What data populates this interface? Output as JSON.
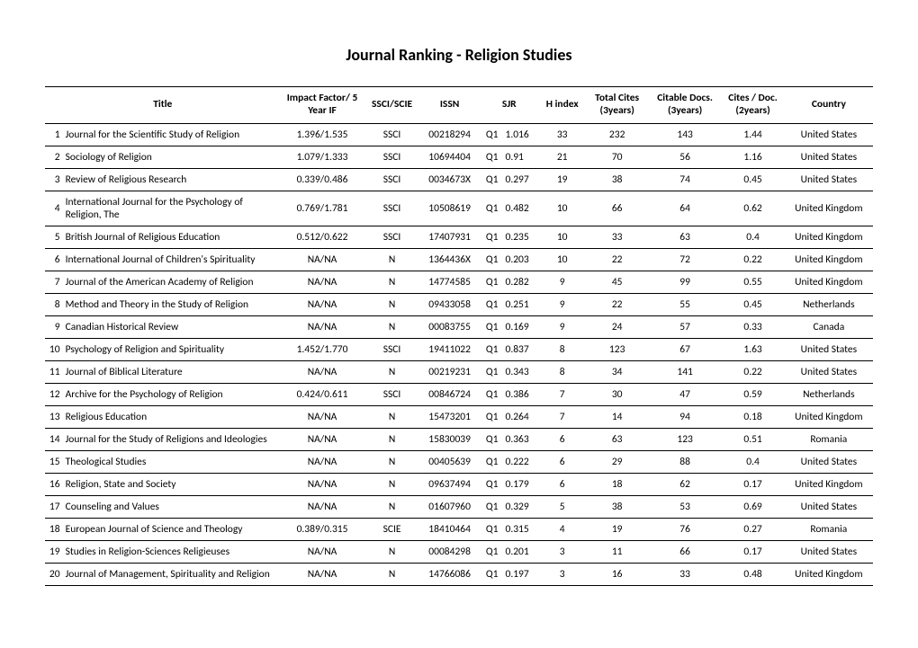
{
  "title": "Journal Ranking - Religion Studies",
  "columns": {
    "title": "Title",
    "impactFactor": "Impact Factor/ 5 Year IF",
    "ssci": "SSCI/SCIE",
    "issn": "ISSN",
    "sjr": "SJR",
    "h": "H index",
    "totalCites": "Total Cites (3years)",
    "citableDocs": "Citable Docs. (3years)",
    "citesDoc": "Cites / Doc. (2years)",
    "country": "Country"
  },
  "rows": [
    {
      "rank": "1",
      "title": "Journal for the Scientific Study of Religion",
      "if": "1.396/1.535",
      "ssci": "SSCI",
      "issn": "00218294",
      "q": "Q1",
      "sjr": "1.016",
      "h": "33",
      "cites": "232",
      "docs": "143",
      "cpd": "1.44",
      "country": "United States"
    },
    {
      "rank": "2",
      "title": "Sociology of Religion",
      "if": "1.079/1.333",
      "ssci": "SSCI",
      "issn": "10694404",
      "q": "Q1",
      "sjr": "0.91",
      "h": "21",
      "cites": "70",
      "docs": "56",
      "cpd": "1.16",
      "country": "United States"
    },
    {
      "rank": "3",
      "title": "Review of Religious Research",
      "if": "0.339/0.486",
      "ssci": "SSCI",
      "issn": "0034673X",
      "q": "Q1",
      "sjr": "0.297",
      "h": "19",
      "cites": "38",
      "docs": "74",
      "cpd": "0.45",
      "country": "United States"
    },
    {
      "rank": "4",
      "title": "International Journal for the Psychology of Religion, The",
      "if": "0.769/1.781",
      "ssci": "SSCI",
      "issn": "10508619",
      "q": "Q1",
      "sjr": "0.482",
      "h": "10",
      "cites": "66",
      "docs": "64",
      "cpd": "0.62",
      "country": "United Kingdom"
    },
    {
      "rank": "5",
      "title": "British Journal of Religious Education",
      "if": "0.512/0.622",
      "ssci": "SSCI",
      "issn": "17407931",
      "q": "Q1",
      "sjr": "0.235",
      "h": "10",
      "cites": "33",
      "docs": "63",
      "cpd": "0.4",
      "country": "United Kingdom"
    },
    {
      "rank": "6",
      "title": "International Journal of Children's Spirituality",
      "if": "NA/NA",
      "ssci": "N",
      "issn": "1364436X",
      "q": "Q1",
      "sjr": "0.203",
      "h": "10",
      "cites": "22",
      "docs": "72",
      "cpd": "0.22",
      "country": "United Kingdom"
    },
    {
      "rank": "7",
      "title": "Journal of the American Academy of Religion",
      "if": "NA/NA",
      "ssci": "N",
      "issn": "14774585",
      "q": "Q1",
      "sjr": "0.282",
      "h": "9",
      "cites": "45",
      "docs": "99",
      "cpd": "0.55",
      "country": "United Kingdom"
    },
    {
      "rank": "8",
      "title": "Method and Theory in the Study of Religion",
      "if": "NA/NA",
      "ssci": "N",
      "issn": "09433058",
      "q": "Q1",
      "sjr": "0.251",
      "h": "9",
      "cites": "22",
      "docs": "55",
      "cpd": "0.45",
      "country": "Netherlands"
    },
    {
      "rank": "9",
      "title": "Canadian Historical Review",
      "if": "NA/NA",
      "ssci": "N",
      "issn": "00083755",
      "q": "Q1",
      "sjr": "0.169",
      "h": "9",
      "cites": "24",
      "docs": "57",
      "cpd": "0.33",
      "country": "Canada"
    },
    {
      "rank": "10",
      "title": "Psychology of Religion and Spirituality",
      "if": "1.452/1.770",
      "ssci": "SSCI",
      "issn": "19411022",
      "q": "Q1",
      "sjr": "0.837",
      "h": "8",
      "cites": "123",
      "docs": "67",
      "cpd": "1.63",
      "country": "United States"
    },
    {
      "rank": "11",
      "title": "Journal of Biblical Literature",
      "if": "NA/NA",
      "ssci": "N",
      "issn": "00219231",
      "q": "Q1",
      "sjr": "0.343",
      "h": "8",
      "cites": "34",
      "docs": "141",
      "cpd": "0.22",
      "country": "United States"
    },
    {
      "rank": "12",
      "title": "Archive for the Psychology of Religion",
      "if": "0.424/0.611",
      "ssci": "SSCI",
      "issn": "00846724",
      "q": "Q1",
      "sjr": "0.386",
      "h": "7",
      "cites": "30",
      "docs": "47",
      "cpd": "0.59",
      "country": "Netherlands"
    },
    {
      "rank": "13",
      "title": "Religious Education",
      "if": "NA/NA",
      "ssci": "N",
      "issn": "15473201",
      "q": "Q1",
      "sjr": "0.264",
      "h": "7",
      "cites": "14",
      "docs": "94",
      "cpd": "0.18",
      "country": "United Kingdom"
    },
    {
      "rank": "14",
      "title": "Journal for the Study of Religions and Ideologies",
      "if": "NA/NA",
      "ssci": "N",
      "issn": "15830039",
      "q": "Q1",
      "sjr": "0.363",
      "h": "6",
      "cites": "63",
      "docs": "123",
      "cpd": "0.51",
      "country": "Romania"
    },
    {
      "rank": "15",
      "title": "Theological Studies",
      "if": "NA/NA",
      "ssci": "N",
      "issn": "00405639",
      "q": "Q1",
      "sjr": "0.222",
      "h": "6",
      "cites": "29",
      "docs": "88",
      "cpd": "0.4",
      "country": "United States"
    },
    {
      "rank": "16",
      "title": "Religion, State and Society",
      "if": "NA/NA",
      "ssci": "N",
      "issn": "09637494",
      "q": "Q1",
      "sjr": "0.179",
      "h": "6",
      "cites": "18",
      "docs": "62",
      "cpd": "0.17",
      "country": "United Kingdom"
    },
    {
      "rank": "17",
      "title": "Counseling and Values",
      "if": "NA/NA",
      "ssci": "N",
      "issn": "01607960",
      "q": "Q1",
      "sjr": "0.329",
      "h": "5",
      "cites": "38",
      "docs": "53",
      "cpd": "0.69",
      "country": "United States"
    },
    {
      "rank": "18",
      "title": "European Journal of Science and Theology",
      "if": "0.389/0.315",
      "ssci": "SCIE",
      "issn": "18410464",
      "q": "Q1",
      "sjr": "0.315",
      "h": "4",
      "cites": "19",
      "docs": "76",
      "cpd": "0.27",
      "country": "Romania"
    },
    {
      "rank": "19",
      "title": "Studies in Religion-Sciences Religieuses",
      "if": "NA/NA",
      "ssci": "N",
      "issn": "00084298",
      "q": "Q1",
      "sjr": "0.201",
      "h": "3",
      "cites": "11",
      "docs": "66",
      "cpd": "0.17",
      "country": "United States"
    },
    {
      "rank": "20",
      "title": "Journal of Management, Spirituality and Religion",
      "if": "NA/NA",
      "ssci": "N",
      "issn": "14766086",
      "q": "Q1",
      "sjr": "0.197",
      "h": "3",
      "cites": "16",
      "docs": "33",
      "cpd": "0.48",
      "country": "United Kingdom"
    }
  ]
}
